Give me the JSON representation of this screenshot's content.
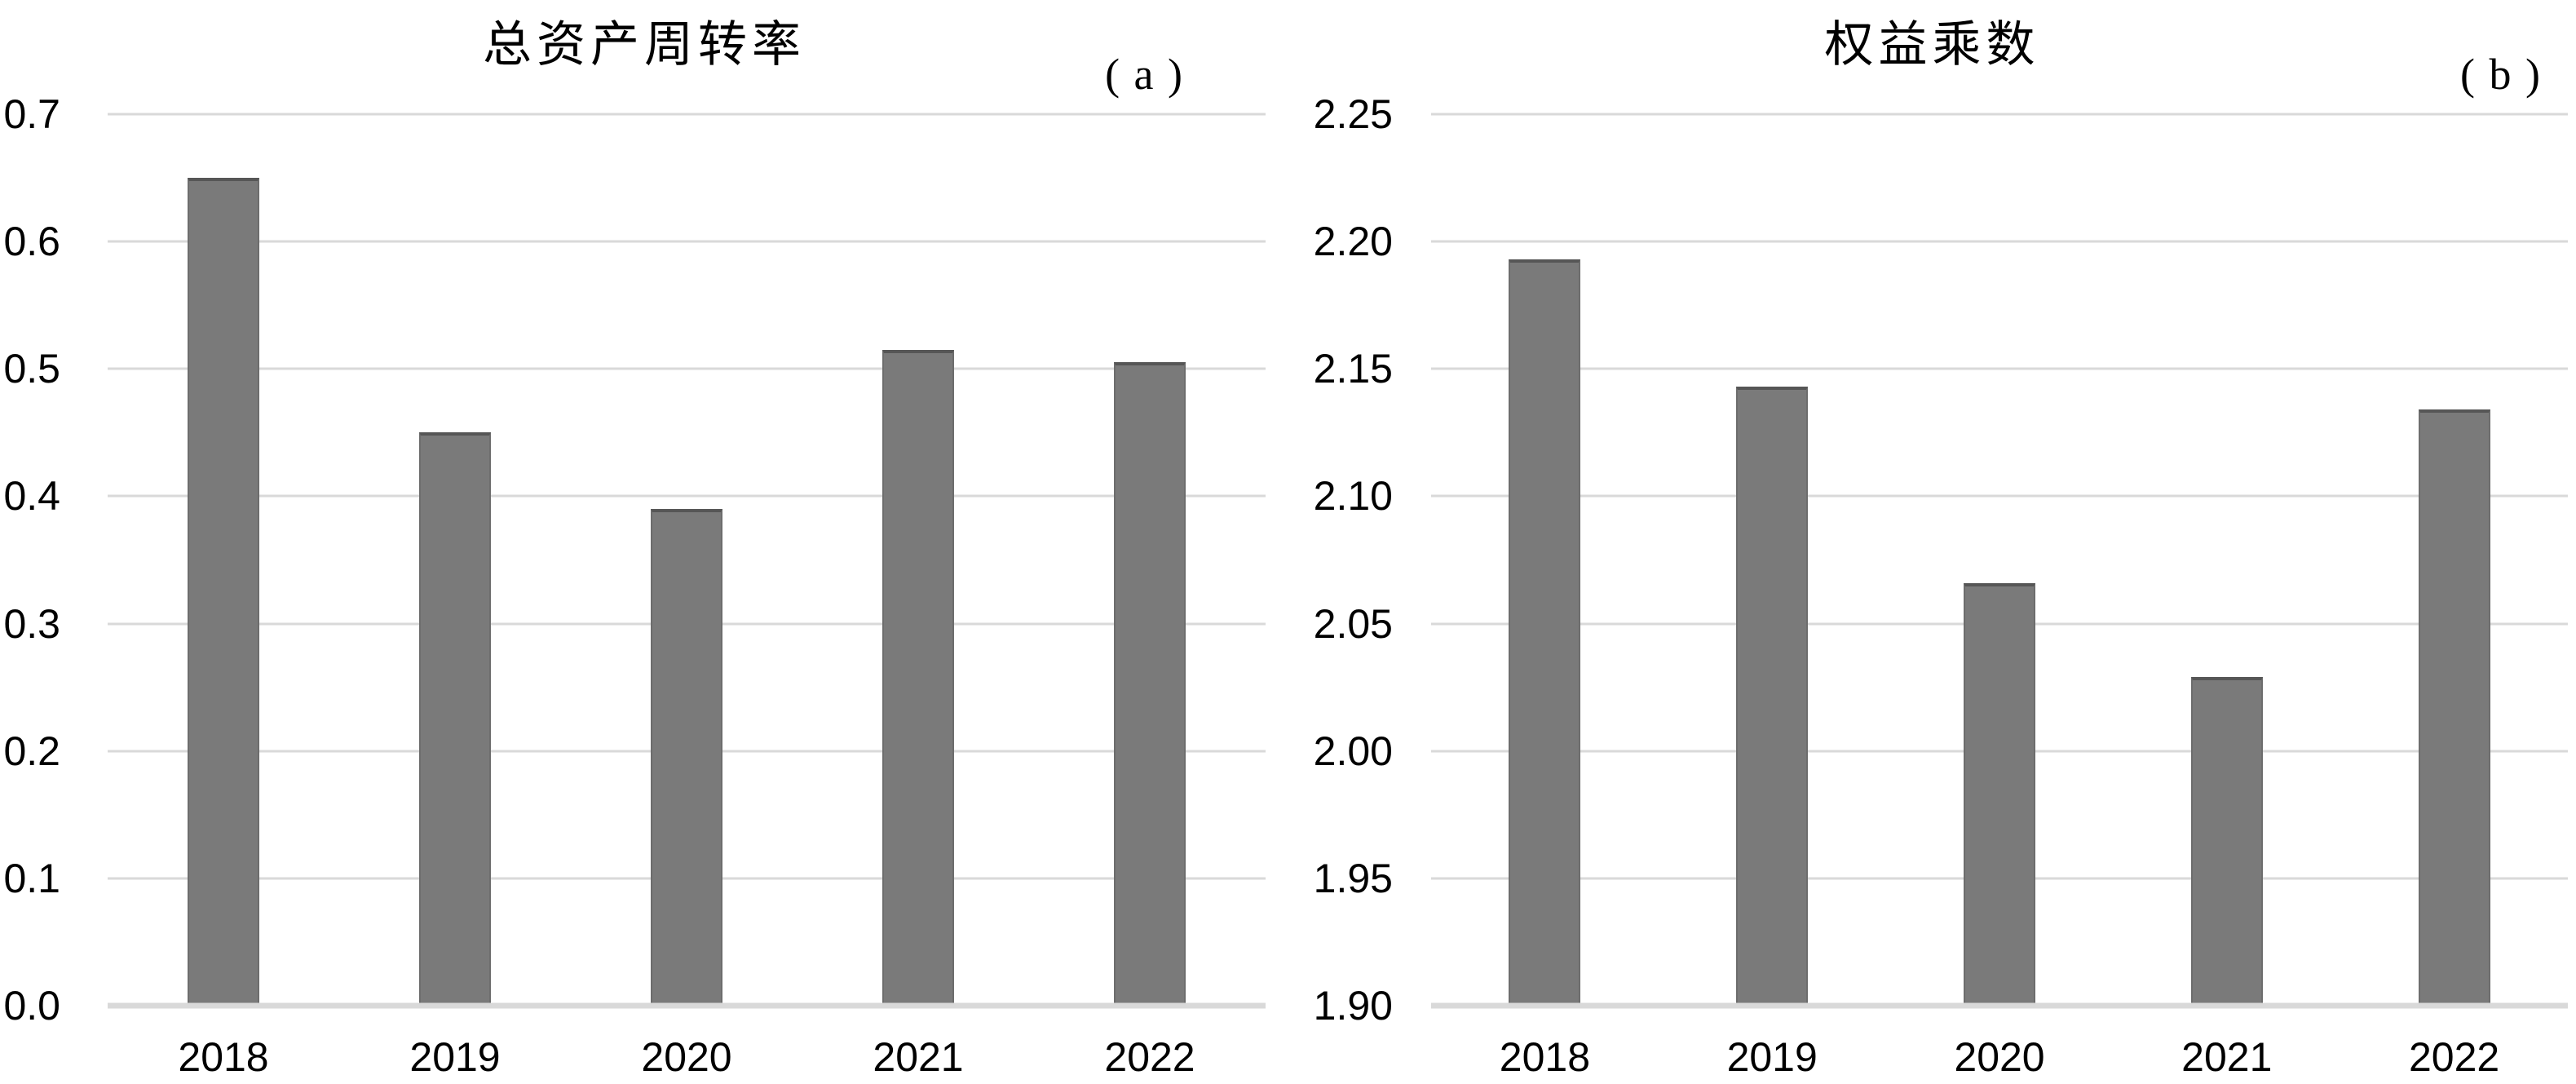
{
  "page": {
    "background": "#ffffff",
    "description": "two-panel gray bar chart figure"
  },
  "chart_data": [
    {
      "type": "bar",
      "panel": "a",
      "title": "总资产周转率",
      "panel_label": "( a )",
      "categories": [
        "2018",
        "2019",
        "2020",
        "2021",
        "2022"
      ],
      "values": [
        0.65,
        0.45,
        0.39,
        0.515,
        0.505
      ],
      "ylim": [
        0.0,
        0.7
      ],
      "ystep": 0.1,
      "ytick_labels": [
        "0.7",
        "0.6",
        "0.5",
        "0.4",
        "0.3",
        "0.2",
        "0.1",
        "0.0"
      ],
      "xlabel": "",
      "ylabel": "",
      "grid": true,
      "legend": false,
      "bar_color": "#7a7a7a",
      "bar_edge_color": "#565656",
      "bar_side_color": "#6d6d6d",
      "grid_color": "#d9d9d9",
      "axis_line_color": "#d9d9d9",
      "text_color": "#000000"
    },
    {
      "type": "bar",
      "panel": "b",
      "title": "权益乘数",
      "panel_label": "( b )",
      "categories": [
        "2018",
        "2019",
        "2020",
        "2021",
        "2022"
      ],
      "values": [
        2.193,
        2.143,
        2.066,
        2.029,
        2.134
      ],
      "ylim": [
        1.9,
        2.25
      ],
      "ystep": 0.05,
      "ytick_labels": [
        "2.25",
        "2.20",
        "2.15",
        "2.10",
        "2.05",
        "2.00",
        "1.95",
        "1.90"
      ],
      "xlabel": "",
      "ylabel": "",
      "grid": true,
      "legend": false,
      "bar_color": "#7a7a7a",
      "bar_edge_color": "#565656",
      "bar_side_color": "#6d6d6d",
      "grid_color": "#d9d9d9",
      "axis_line_color": "#d9d9d9",
      "text_color": "#000000"
    }
  ]
}
